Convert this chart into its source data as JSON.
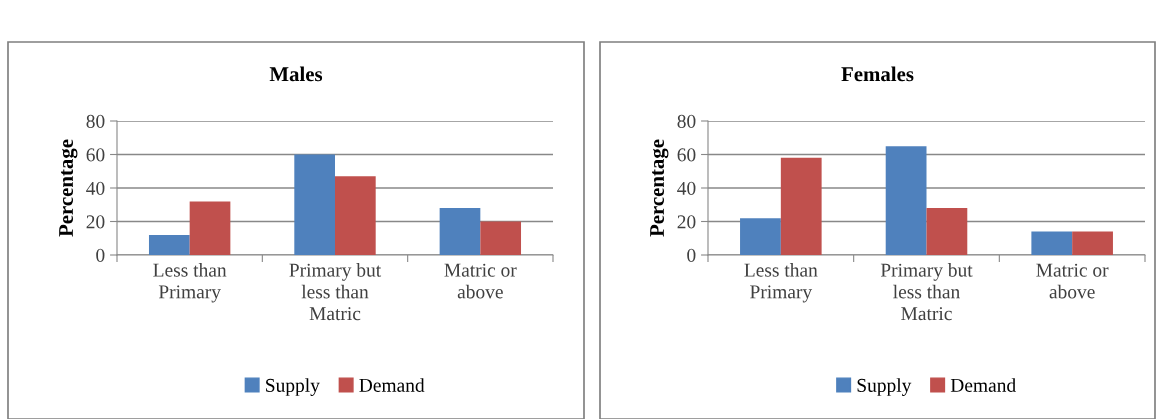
{
  "chart_data": [
    {
      "type": "bar",
      "title": "Males",
      "ylabel": "Percentage",
      "categories": [
        "Less than\nPrimary",
        "Primary but\nless than\nMatric",
        "Matric or\nabove"
      ],
      "ylim": [
        0,
        80
      ],
      "yticks": [
        0,
        20,
        40,
        60,
        80
      ],
      "grid": "y",
      "legend": "bottom",
      "series": [
        {
          "name": "Supply",
          "color": "#4f81bd",
          "values": [
            12,
            60,
            28
          ]
        },
        {
          "name": "Demand",
          "color": "#c0504d",
          "values": [
            32,
            47,
            20
          ]
        }
      ]
    },
    {
      "type": "bar",
      "title": "Females",
      "ylabel": "Percentage",
      "categories": [
        "Less than\nPrimary",
        "Primary but\nless than\nMatric",
        "Matric or\nabove"
      ],
      "ylim": [
        0,
        80
      ],
      "yticks": [
        0,
        20,
        40,
        60,
        80
      ],
      "grid": "y",
      "legend": "bottom",
      "series": [
        {
          "name": "Supply",
          "color": "#4f81bd",
          "values": [
            22,
            65,
            14
          ]
        },
        {
          "name": "Demand",
          "color": "#c0504d",
          "values": [
            58,
            28,
            14
          ]
        }
      ]
    }
  ]
}
